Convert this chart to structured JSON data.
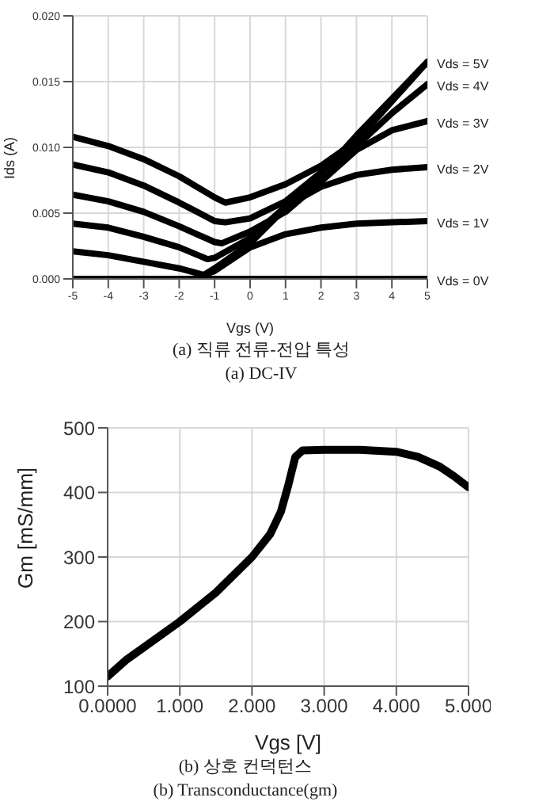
{
  "chart_data": [
    {
      "type": "line",
      "xlabel": "Vgs (V)",
      "ylabel": "Ids (A)",
      "annotations": [
        "(a) 직류 전류-전압 특성",
        "(a) DC-IV"
      ],
      "xlim": [
        -5,
        5
      ],
      "xticks": [
        -5,
        -4,
        -3,
        -2,
        -1,
        0,
        1,
        2,
        3,
        4,
        5
      ],
      "ylim": [
        0,
        0.02
      ],
      "yticks": [
        {
          "value": 0,
          "label": "0.000"
        },
        {
          "value": 0.005,
          "label": "0.005"
        },
        {
          "value": 0.01,
          "label": "0.010"
        },
        {
          "value": 0.015,
          "label": "0.015"
        },
        {
          "value": 0.02,
          "label": "0.020"
        }
      ],
      "grid": true,
      "marker": "none",
      "line_style": "solid",
      "series": [
        {
          "name": "Vds = 5V",
          "color": "#000000",
          "x": [
            -5,
            -4,
            -3,
            -2,
            -1,
            -0.7,
            0,
            1,
            2,
            3,
            4,
            5
          ],
          "values": [
            0.0108,
            0.0101,
            0.0091,
            0.0078,
            0.0062,
            0.0058,
            0.0062,
            0.0072,
            0.0086,
            0.0105,
            0.0135,
            0.0165
          ]
        },
        {
          "name": "Vds = 4V",
          "color": "#000000",
          "x": [
            -5,
            -4,
            -3,
            -2,
            -1,
            -0.7,
            0,
            1,
            2,
            3,
            4,
            5
          ],
          "values": [
            0.0087,
            0.0081,
            0.0071,
            0.0058,
            0.0044,
            0.0043,
            0.0046,
            0.0059,
            0.0081,
            0.0101,
            0.0126,
            0.0148
          ]
        },
        {
          "name": "Vds = 3V",
          "color": "#000000",
          "x": [
            -5,
            -4,
            -3,
            -2,
            -1,
            -0.8,
            0,
            1,
            2,
            3,
            4,
            5
          ],
          "values": [
            0.0064,
            0.0059,
            0.0051,
            0.004,
            0.0028,
            0.0027,
            0.0036,
            0.0051,
            0.0074,
            0.0098,
            0.0113,
            0.012
          ]
        },
        {
          "name": "Vds = 2V",
          "color": "#000000",
          "x": [
            -5,
            -4,
            -3,
            -2,
            -1.2,
            -1,
            0,
            1,
            2,
            3,
            4,
            5
          ],
          "values": [
            0.0042,
            0.0039,
            0.0032,
            0.0024,
            0.0015,
            0.0016,
            0.0031,
            0.0055,
            0.007,
            0.0079,
            0.0083,
            0.0085
          ]
        },
        {
          "name": "Vds = 1V",
          "color": "#000000",
          "x": [
            -5,
            -4,
            -3,
            -2,
            -1.3,
            -1,
            0,
            1,
            2,
            3,
            4,
            5
          ],
          "values": [
            0.0021,
            0.0018,
            0.0013,
            0.0008,
            0.0003,
            0.0006,
            0.0024,
            0.0034,
            0.0039,
            0.0042,
            0.0043,
            0.0044
          ]
        },
        {
          "name": "Vds = 0V",
          "color": "#000000",
          "x": [
            -5,
            5
          ],
          "values": [
            0,
            0
          ]
        },
        {
          "color": "#000000",
          "x": [
            -1.3,
            -1,
            0,
            1,
            2,
            2.5,
            3,
            4,
            5
          ],
          "values": [
            0.0003,
            0.0008,
            0.0027,
            0.0054,
            0.008,
            0.0094,
            0.0109,
            0.0137,
            0.0165
          ]
        }
      ]
    },
    {
      "type": "line",
      "xlabel": "Vgs [V]",
      "ylabel": "Gm [mS/mm]",
      "annotations": [
        "(b) 상호 컨덕턴스",
        "(b) Transconductance(gm)"
      ],
      "xlim": [
        0,
        5
      ],
      "xticks": [
        {
          "value": 0,
          "label": "0.0000"
        },
        {
          "value": 1,
          "label": "1.000"
        },
        {
          "value": 2,
          "label": "2.000"
        },
        {
          "value": 3,
          "label": "3.000"
        },
        {
          "value": 4,
          "label": "4.000"
        },
        {
          "value": 5,
          "label": "5.000"
        }
      ],
      "ylim": [
        100,
        500
      ],
      "yticks": [
        100,
        200,
        300,
        400,
        500
      ],
      "grid": true,
      "marker": "none",
      "line_style": "solid",
      "series": [
        {
          "color": "#000000",
          "x": [
            0,
            0.25,
            0.5,
            1,
            1.5,
            2,
            2.25,
            2.4,
            2.5,
            2.6,
            2.7,
            3,
            3.5,
            4,
            4.3,
            4.6,
            4.8,
            5
          ],
          "values": [
            115,
            140,
            160,
            200,
            245,
            300,
            335,
            370,
            410,
            455,
            465,
            466,
            466,
            463,
            455,
            440,
            425,
            408
          ]
        }
      ]
    }
  ]
}
